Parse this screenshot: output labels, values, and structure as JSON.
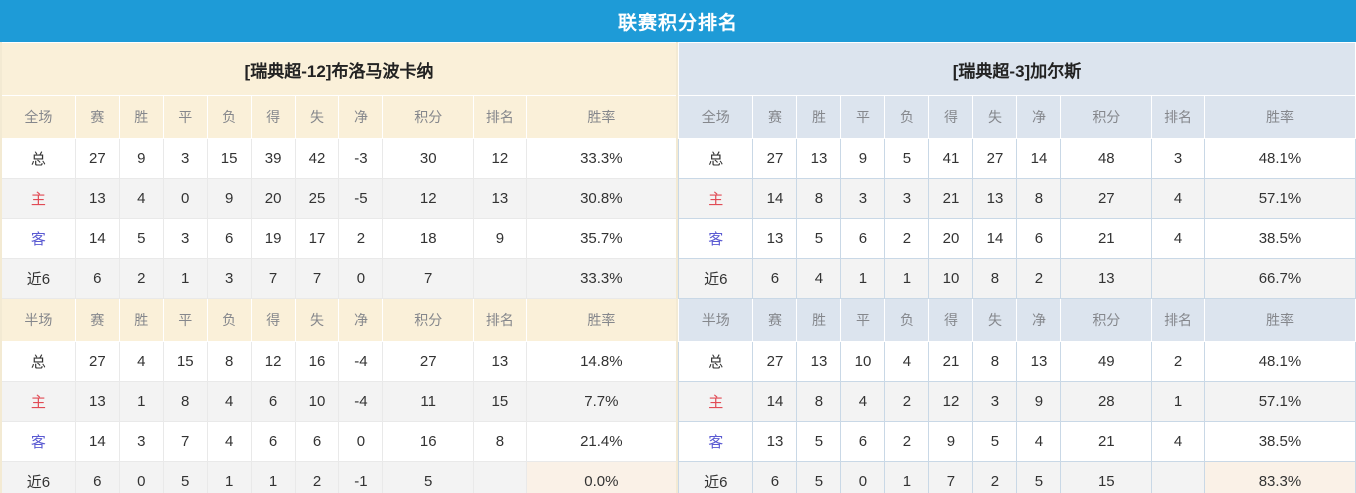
{
  "title": "联赛积分排名",
  "colors": {
    "title_bar_bg": "#1E9BD7",
    "value_red": "#EF432C",
    "rank_blue": "#3E7FC4",
    "home_red": "#E14B55",
    "away_blue": "#5A5AD2",
    "left_header_bg": "#FAF0D9",
    "right_header_bg": "#DCE4EE",
    "alt_row_bg": "#F3F3F3",
    "rate_highlight_bg": "#FAF1E7"
  },
  "columns": {
    "full_label": "全场",
    "half_label": "半场",
    "stats": [
      "赛",
      "胜",
      "平",
      "负",
      "得",
      "失",
      "净",
      "积分",
      "排名",
      "胜率"
    ]
  },
  "teams": [
    {
      "name": "[瑞典超-12]布洛马波卡纳",
      "full": [
        {
          "label": "总",
          "cells": [
            27,
            9,
            3,
            15,
            39,
            42,
            -3
          ],
          "points": 30,
          "rank": 12,
          "rate": "33.3%"
        },
        {
          "label": "主",
          "cells": [
            13,
            4,
            0,
            9,
            20,
            25,
            -5
          ],
          "points": 12,
          "rank": 13,
          "rate": "30.8%"
        },
        {
          "label": "客",
          "cells": [
            14,
            5,
            3,
            6,
            19,
            17,
            2
          ],
          "points": 18,
          "rank": 9,
          "rate": "35.7%"
        },
        {
          "label": "近6",
          "cells": [
            6,
            2,
            1,
            3,
            7,
            7,
            0
          ],
          "points": 7,
          "rank": "",
          "rate": "33.3%"
        }
      ],
      "half": [
        {
          "label": "总",
          "cells": [
            27,
            4,
            15,
            8,
            12,
            16,
            -4
          ],
          "points": 27,
          "rank": 13,
          "rate": "14.8%"
        },
        {
          "label": "主",
          "cells": [
            13,
            1,
            8,
            4,
            6,
            10,
            -4
          ],
          "points": 11,
          "rank": 15,
          "rate": "7.7%"
        },
        {
          "label": "客",
          "cells": [
            14,
            3,
            7,
            4,
            6,
            6,
            0
          ],
          "points": 16,
          "rank": 8,
          "rate": "21.4%"
        },
        {
          "label": "近6",
          "cells": [
            6,
            0,
            5,
            1,
            1,
            2,
            -1
          ],
          "points": 5,
          "rank": "",
          "rate": "0.0%"
        }
      ]
    },
    {
      "name": "[瑞典超-3]加尔斯",
      "full": [
        {
          "label": "总",
          "cells": [
            27,
            13,
            9,
            5,
            41,
            27,
            14
          ],
          "points": 48,
          "rank": 3,
          "rate": "48.1%"
        },
        {
          "label": "主",
          "cells": [
            14,
            8,
            3,
            3,
            21,
            13,
            8
          ],
          "points": 27,
          "rank": 4,
          "rate": "57.1%"
        },
        {
          "label": "客",
          "cells": [
            13,
            5,
            6,
            2,
            20,
            14,
            6
          ],
          "points": 21,
          "rank": 4,
          "rate": "38.5%"
        },
        {
          "label": "近6",
          "cells": [
            6,
            4,
            1,
            1,
            10,
            8,
            2
          ],
          "points": 13,
          "rank": "",
          "rate": "66.7%"
        }
      ],
      "half": [
        {
          "label": "总",
          "cells": [
            27,
            13,
            10,
            4,
            21,
            8,
            13
          ],
          "points": 49,
          "rank": 2,
          "rate": "48.1%"
        },
        {
          "label": "主",
          "cells": [
            14,
            8,
            4,
            2,
            12,
            3,
            9
          ],
          "points": 28,
          "rank": 1,
          "rate": "57.1%"
        },
        {
          "label": "客",
          "cells": [
            13,
            5,
            6,
            2,
            9,
            5,
            4
          ],
          "points": 21,
          "rank": 4,
          "rate": "38.5%"
        },
        {
          "label": "近6",
          "cells": [
            6,
            5,
            0,
            1,
            7,
            2,
            5
          ],
          "points": 15,
          "rank": "",
          "rate": "83.3%"
        }
      ]
    }
  ]
}
